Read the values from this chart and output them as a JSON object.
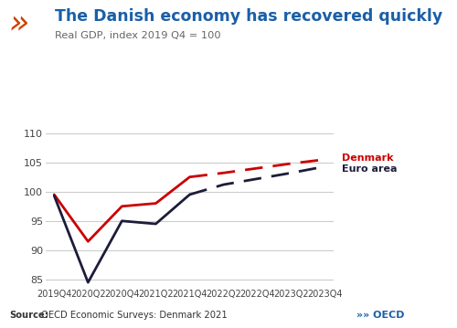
{
  "title": "The Danish economy has recovered quickly",
  "subtitle": "Real GDP, index 2019 Q4 = 100",
  "source_bold": "Source:",
  "source_rest": " OECD Economic Surveys: Denmark 2021",
  "title_color": "#1a5fa8",
  "subtitle_color": "#666666",
  "source_color": "#333333",
  "background_color": "#ffffff",
  "xlabels": [
    "2019Q4",
    "2020Q2",
    "2020Q4",
    "2021Q2",
    "2021Q4",
    "2022Q2",
    "2022Q4",
    "2023Q2",
    "2023Q4"
  ],
  "x_numeric": [
    0,
    2,
    4,
    6,
    8,
    10,
    12,
    14,
    16
  ],
  "ylim": [
    84,
    112
  ],
  "yticks": [
    85,
    90,
    95,
    100,
    105,
    110
  ],
  "denmark_color": "#cc0000",
  "euro_color": "#1c1c3a",
  "denmark_solid_x": [
    0,
    2,
    4,
    6,
    8
  ],
  "denmark_solid_y": [
    99.5,
    91.5,
    97.5,
    98.0,
    102.5
  ],
  "denmark_dash_x": [
    8,
    10,
    12,
    14,
    16
  ],
  "denmark_dash_y": [
    102.5,
    103.2,
    104.0,
    104.8,
    105.5
  ],
  "euro_solid_x": [
    0,
    2,
    4,
    6,
    8
  ],
  "euro_solid_y": [
    99.3,
    84.5,
    95.0,
    94.5,
    99.5
  ],
  "euro_dash_x": [
    8,
    10,
    12,
    14,
    16
  ],
  "euro_dash_y": [
    99.5,
    101.2,
    102.2,
    103.2,
    104.3
  ],
  "gridline_color": "#cccccc",
  "legend_denmark": "Denmark",
  "legend_euro": "Euro area",
  "oecd_color": "#1a5fa8",
  "oecd_arrow_color": "#cc0000"
}
